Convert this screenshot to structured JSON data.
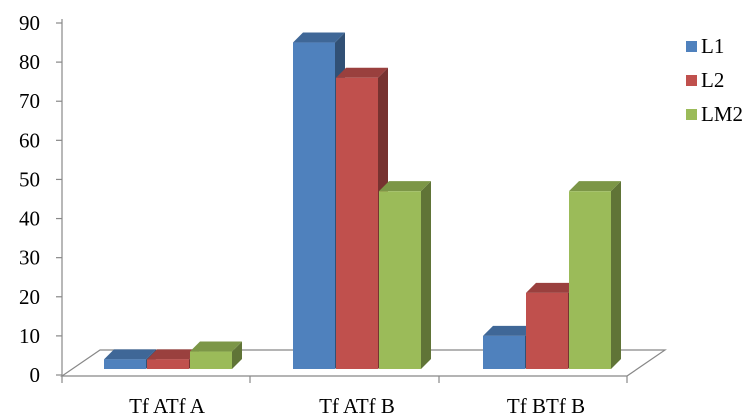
{
  "chart_data": {
    "type": "bar",
    "style": "3d-clustered-column",
    "categories": [
      "Tf ATf A",
      "Tf ATf B",
      "Tf BTf B"
    ],
    "series": [
      {
        "name": "L1",
        "color": "#4F81BD",
        "values": [
          4,
          85,
          10
        ]
      },
      {
        "name": "L2",
        "color": "#C0504D",
        "values": [
          4,
          76,
          21
        ]
      },
      {
        "name": "LM2",
        "color": "#9BBB59",
        "values": [
          6,
          47,
          47
        ]
      }
    ],
    "yticks": [
      0,
      10,
      20,
      30,
      40,
      50,
      60,
      70,
      80,
      90
    ],
    "ylim": [
      0,
      90
    ],
    "grid": false,
    "legend": "right",
    "title": "",
    "xlabel": "",
    "ylabel": ""
  }
}
